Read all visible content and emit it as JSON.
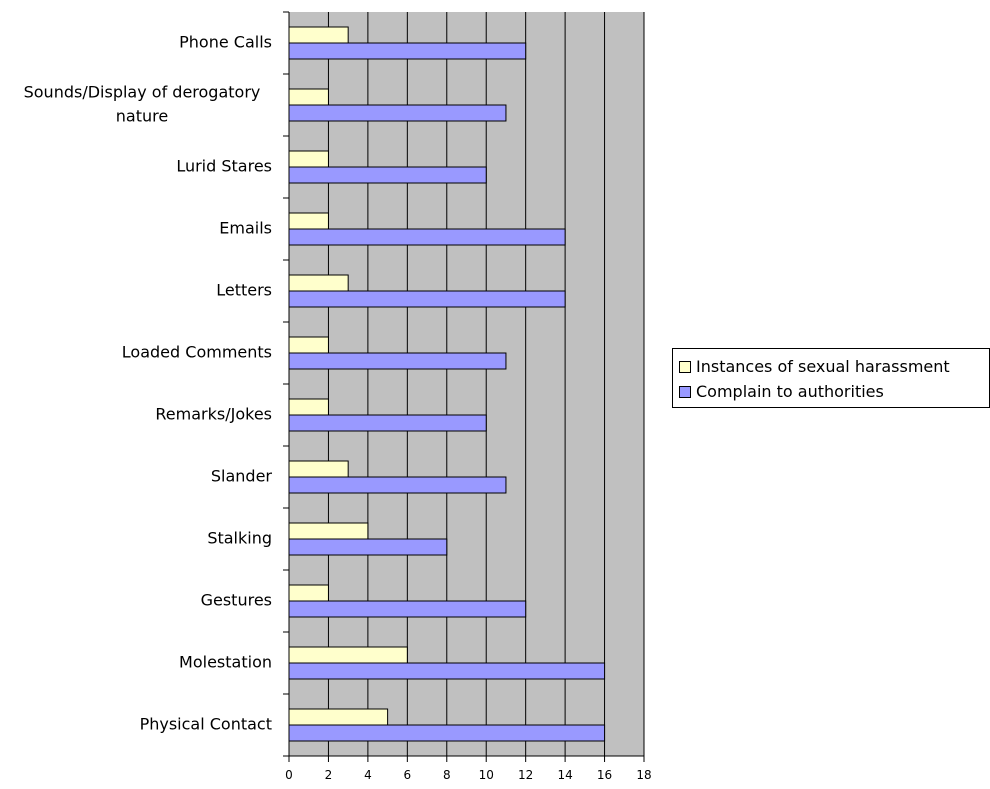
{
  "chart_data": {
    "type": "bar",
    "orientation": "horizontal",
    "categories": [
      "Phone Calls",
      "Sounds/Display of derogatory nature",
      "Lurid Stares",
      "Emails",
      "Letters",
      "Loaded Comments",
      "Remarks/Jokes",
      "Slander",
      "Stalking",
      "Gestures",
      "Molestation",
      "Physical Contact"
    ],
    "category_lines": [
      [
        "Phone Calls"
      ],
      [
        "Sounds/Display of derogatory",
        "nature"
      ],
      [
        "Lurid Stares"
      ],
      [
        "Emails"
      ],
      [
        "Letters"
      ],
      [
        "Loaded Comments"
      ],
      [
        "Remarks/Jokes"
      ],
      [
        "Slander"
      ],
      [
        "Stalking"
      ],
      [
        "Gestures"
      ],
      [
        "Molestation"
      ],
      [
        "Physical Contact"
      ]
    ],
    "series": [
      {
        "name": "Instances of sexual harassment",
        "color": "#ffffcc",
        "values": [
          3,
          2,
          2,
          2,
          3,
          2,
          2,
          3,
          4,
          2,
          6,
          5
        ]
      },
      {
        "name": "Complain to authorities",
        "color": "#9999ff",
        "values": [
          12,
          11,
          10,
          14,
          14,
          11,
          10,
          11,
          8,
          12,
          16,
          16
        ]
      }
    ],
    "xlim": [
      0,
      18
    ],
    "xticks": [
      0,
      2,
      4,
      6,
      8,
      10,
      12,
      14,
      16,
      18
    ],
    "plot_background": "#c0c0c0",
    "grid": true,
    "legend_position": "right"
  }
}
